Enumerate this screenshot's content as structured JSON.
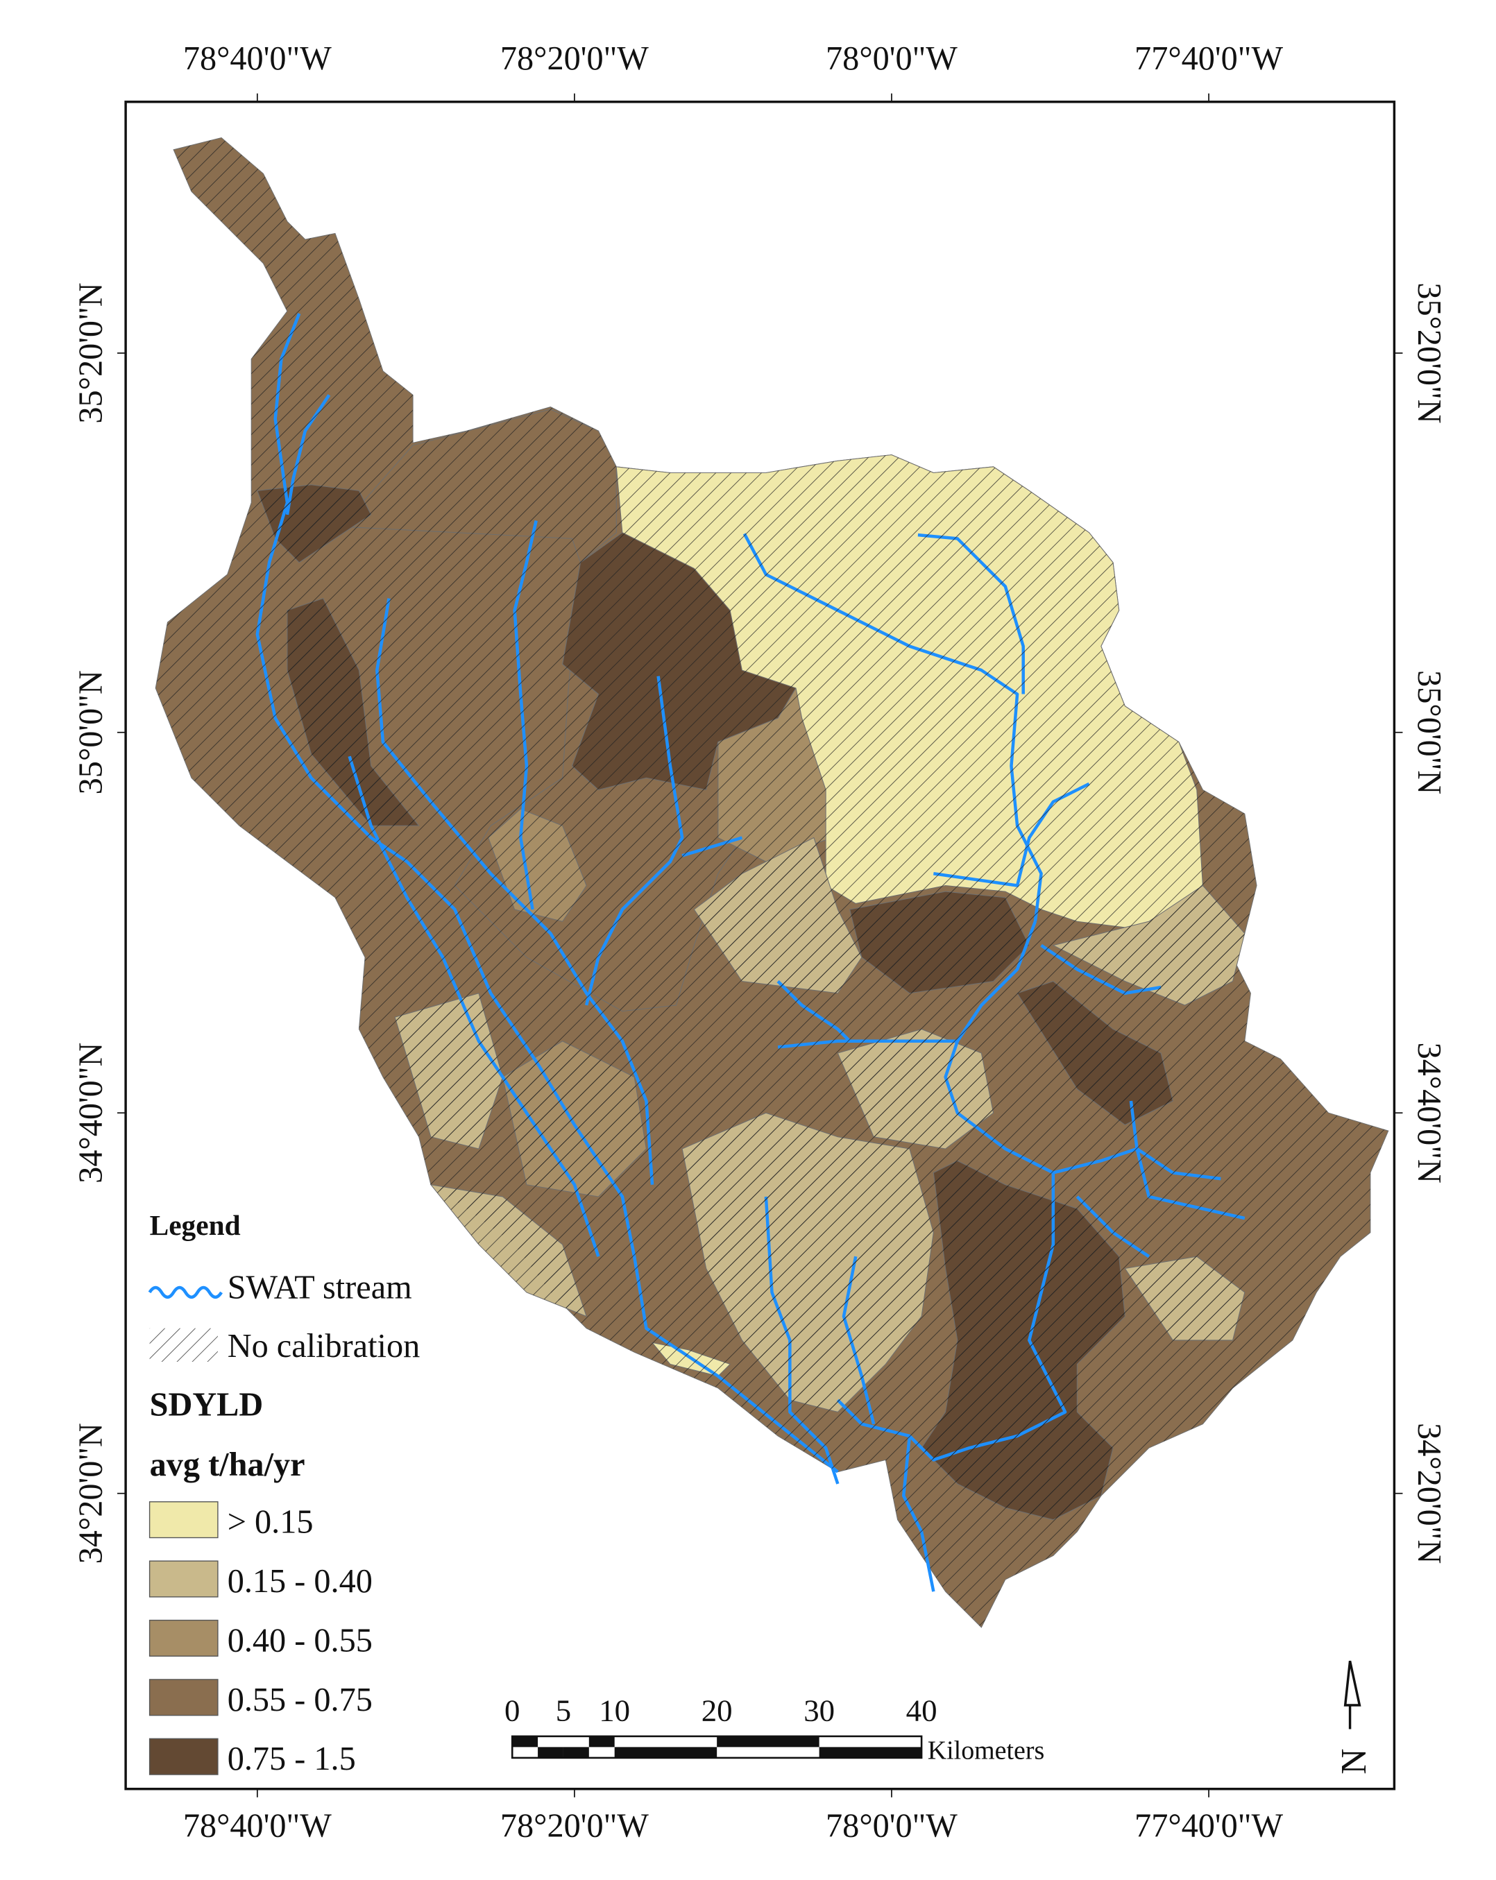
{
  "map": {
    "graticule": {
      "longitudes": [
        "78°40'0\"W",
        "78°20'0\"W",
        "78°0'0\"W",
        "77°40'0\"W"
      ],
      "latitudes": [
        "35°20'0\"N",
        "35°0'0\"N",
        "34°40'0\"N",
        "34°20'0\"N"
      ]
    },
    "legend": {
      "title": "Legend",
      "stream_label": "SWAT stream",
      "hatch_label": "No calibration",
      "variable": "SDYLD",
      "unit": "avg t/ha/yr",
      "classes": [
        {
          "label": "> 0.15",
          "color": "#f0e9aa"
        },
        {
          "label": "0.15 - 0.40",
          "color": "#c9b98b"
        },
        {
          "label": "0.40 - 0.55",
          "color": "#a78e66"
        },
        {
          "label": "0.55 - 0.75",
          "color": "#8a6e4f"
        },
        {
          "label": "0.75 - 1.5",
          "color": "#634933"
        }
      ]
    },
    "scale_bar": {
      "ticks": [
        0,
        5,
        10,
        20,
        30,
        40
      ],
      "unit": "Kilometers"
    },
    "north_arrow": "N"
  }
}
